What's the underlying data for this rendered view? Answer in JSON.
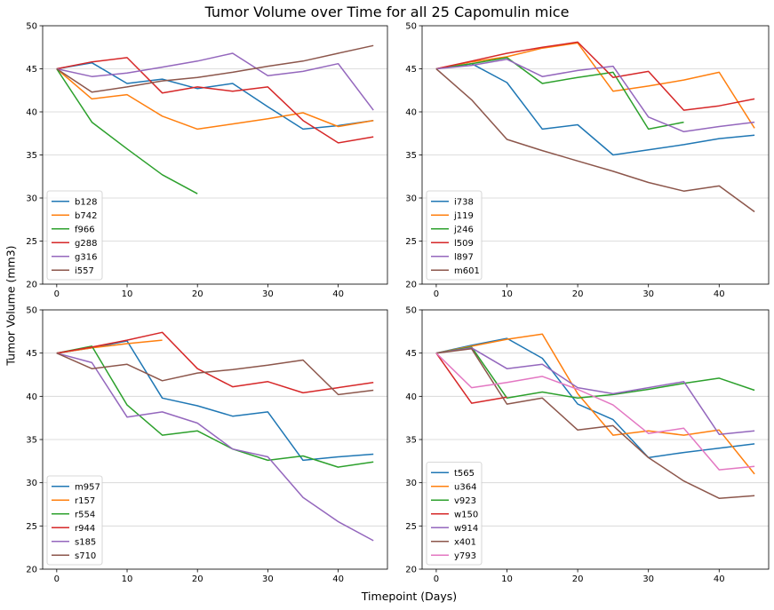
{
  "figure": {
    "title": "Tumor Volume over Time for all 25 Capomulin mice",
    "xlabel": "Timepoint (Days)",
    "ylabel": "Tumor Volume (mm3)"
  },
  "colors": [
    "#1f77b4",
    "#ff7f0e",
    "#2ca02c",
    "#d62728",
    "#9467bd",
    "#8c564b",
    "#e377c2"
  ],
  "chart_data": [
    {
      "type": "line",
      "position": "top-left",
      "xlim": [
        -2,
        47
      ],
      "ylim": [
        20,
        50
      ],
      "xticks": [
        0,
        10,
        20,
        30,
        40
      ],
      "yticks": [
        20,
        25,
        30,
        35,
        40,
        45,
        50
      ],
      "grid": "horizontal",
      "legend": "lower-left",
      "series": [
        {
          "name": "b128",
          "x": [
            0,
            5,
            10,
            15,
            20,
            25,
            30,
            35,
            40,
            45
          ],
          "y": [
            45,
            45.7,
            43.3,
            43.8,
            42.7,
            43.3,
            40.6,
            38.0,
            38.4,
            39.0
          ]
        },
        {
          "name": "b742",
          "x": [
            0,
            5,
            10,
            15,
            20,
            25,
            30,
            35,
            40,
            45
          ],
          "y": [
            45,
            41.5,
            42.0,
            39.5,
            38.0,
            38.6,
            39.2,
            39.9,
            38.3,
            39.0
          ]
        },
        {
          "name": "f966",
          "x": [
            0,
            5,
            10,
            15,
            20
          ],
          "y": [
            45,
            38.8,
            35.7,
            32.7,
            30.5
          ]
        },
        {
          "name": "g288",
          "x": [
            0,
            5,
            10,
            15,
            20,
            25,
            30,
            35,
            40,
            45
          ],
          "y": [
            45,
            45.8,
            46.3,
            42.2,
            42.9,
            42.4,
            42.9,
            39.0,
            36.4,
            37.1
          ]
        },
        {
          "name": "g316",
          "x": [
            0,
            5,
            10,
            15,
            20,
            25,
            30,
            35,
            40,
            45
          ],
          "y": [
            45,
            44.1,
            44.5,
            45.2,
            45.9,
            46.8,
            44.2,
            44.7,
            45.6,
            40.2
          ]
        },
        {
          "name": "i557",
          "x": [
            0,
            5,
            10,
            15,
            20,
            25,
            30,
            35,
            40,
            45
          ],
          "y": [
            45,
            42.3,
            42.9,
            43.6,
            44.0,
            44.6,
            45.3,
            45.9,
            46.8,
            47.7
          ]
        }
      ]
    },
    {
      "type": "line",
      "position": "top-right",
      "xlim": [
        -2,
        47
      ],
      "ylim": [
        20,
        50
      ],
      "xticks": [
        0,
        10,
        20,
        30,
        40
      ],
      "yticks": [
        20,
        25,
        30,
        35,
        40,
        45,
        50
      ],
      "grid": "horizontal",
      "legend": "lower-left",
      "series": [
        {
          "name": "i738",
          "x": [
            0,
            5,
            10,
            15,
            20,
            25,
            30,
            35,
            40,
            45
          ],
          "y": [
            45,
            45.6,
            43.4,
            38.0,
            38.5,
            35.0,
            35.6,
            36.2,
            36.9,
            37.3
          ]
        },
        {
          "name": "j119",
          "x": [
            0,
            5,
            10,
            15,
            20,
            25,
            30,
            35,
            40,
            45
          ],
          "y": [
            45,
            45.8,
            46.4,
            47.4,
            48.0,
            42.4,
            43.0,
            43.7,
            44.6,
            38.1
          ]
        },
        {
          "name": "j246",
          "x": [
            0,
            5,
            10,
            15,
            20,
            25,
            30,
            35
          ],
          "y": [
            45,
            45.6,
            46.3,
            43.3,
            44.0,
            44.6,
            38.0,
            38.8
          ]
        },
        {
          "name": "l509",
          "x": [
            0,
            5,
            10,
            15,
            20,
            25,
            30,
            35,
            40,
            45
          ],
          "y": [
            45,
            45.9,
            46.8,
            47.5,
            48.1,
            44.0,
            44.7,
            40.2,
            40.7,
            41.5
          ]
        },
        {
          "name": "l897",
          "x": [
            0,
            5,
            10,
            15,
            20,
            25,
            30,
            35,
            40,
            45
          ],
          "y": [
            45,
            45.4,
            46.1,
            44.1,
            44.8,
            45.3,
            39.4,
            37.7,
            38.3,
            38.8
          ]
        },
        {
          "name": "m601",
          "x": [
            0,
            5,
            10,
            15,
            20,
            25,
            30,
            35,
            40,
            45
          ],
          "y": [
            45,
            41.4,
            36.8,
            35.5,
            34.3,
            33.1,
            31.8,
            30.8,
            31.4,
            28.4
          ]
        }
      ]
    },
    {
      "type": "line",
      "position": "bottom-left",
      "xlim": [
        -2,
        47
      ],
      "ylim": [
        20,
        50
      ],
      "xticks": [
        0,
        10,
        20,
        30,
        40
      ],
      "yticks": [
        20,
        25,
        30,
        35,
        40,
        45,
        50
      ],
      "grid": "horizontal",
      "legend": "lower-left",
      "series": [
        {
          "name": "m957",
          "x": [
            0,
            5,
            10,
            15,
            20,
            25,
            30,
            35,
            40,
            45
          ],
          "y": [
            45,
            45.6,
            46.4,
            39.8,
            38.9,
            37.7,
            38.2,
            32.6,
            33.0,
            33.3
          ]
        },
        {
          "name": "r157",
          "x": [
            0,
            5,
            10,
            15
          ],
          "y": [
            45,
            45.6,
            46.1,
            46.5
          ]
        },
        {
          "name": "r554",
          "x": [
            0,
            5,
            10,
            15,
            20,
            25,
            30,
            35,
            40,
            45
          ],
          "y": [
            45,
            45.8,
            39.0,
            35.5,
            36.0,
            33.9,
            32.6,
            33.1,
            31.8,
            32.4
          ]
        },
        {
          "name": "r944",
          "x": [
            0,
            5,
            10,
            15,
            20,
            25,
            30,
            35,
            40,
            45
          ],
          "y": [
            45,
            45.7,
            46.5,
            47.4,
            43.2,
            41.1,
            41.7,
            40.4,
            41.0,
            41.6
          ]
        },
        {
          "name": "s185",
          "x": [
            0,
            5,
            10,
            15,
            20,
            25,
            30,
            35,
            40,
            45
          ],
          "y": [
            45,
            43.9,
            37.6,
            38.2,
            36.9,
            33.9,
            33.0,
            28.3,
            25.5,
            23.3
          ]
        },
        {
          "name": "s710",
          "x": [
            0,
            5,
            10,
            15,
            20,
            25,
            30,
            35,
            40,
            45
          ],
          "y": [
            45,
            43.2,
            43.7,
            41.8,
            42.7,
            43.1,
            43.6,
            44.2,
            40.2,
            40.7
          ]
        }
      ]
    },
    {
      "type": "line",
      "position": "bottom-right",
      "xlim": [
        -2,
        47
      ],
      "ylim": [
        20,
        50
      ],
      "xticks": [
        0,
        10,
        20,
        30,
        40
      ],
      "yticks": [
        20,
        25,
        30,
        35,
        40,
        45,
        50
      ],
      "grid": "horizontal",
      "legend": "lower-left",
      "series": [
        {
          "name": "t565",
          "x": [
            0,
            5,
            10,
            15,
            20,
            25,
            30,
            35,
            40,
            45
          ],
          "y": [
            45,
            45.9,
            46.7,
            44.4,
            39.1,
            37.3,
            32.9,
            33.5,
            34.0,
            34.5
          ]
        },
        {
          "name": "u364",
          "x": [
            0,
            5,
            10,
            15,
            20,
            25,
            30,
            35,
            40,
            45
          ],
          "y": [
            45,
            45.8,
            46.6,
            47.2,
            40.3,
            35.5,
            36.0,
            35.5,
            36.1,
            31.0
          ]
        },
        {
          "name": "v923",
          "x": [
            0,
            5,
            10,
            15,
            20,
            25,
            30,
            35,
            40,
            45
          ],
          "y": [
            45,
            45.7,
            39.8,
            40.5,
            39.8,
            40.2,
            40.8,
            41.5,
            42.1,
            40.7
          ]
        },
        {
          "name": "w150",
          "x": [
            0,
            5,
            10
          ],
          "y": [
            45,
            39.2,
            39.9
          ]
        },
        {
          "name": "w914",
          "x": [
            0,
            5,
            10,
            15,
            20,
            25,
            30,
            35,
            40,
            45
          ],
          "y": [
            45,
            45.6,
            43.2,
            43.7,
            41.0,
            40.3,
            41.0,
            41.7,
            35.6,
            36.0
          ]
        },
        {
          "name": "x401",
          "x": [
            0,
            5,
            10,
            15,
            20,
            25,
            30,
            35,
            40,
            45
          ],
          "y": [
            45,
            45.5,
            39.1,
            39.8,
            36.1,
            36.6,
            32.9,
            30.2,
            28.2,
            28.5
          ]
        },
        {
          "name": "y793",
          "x": [
            0,
            5,
            10,
            15,
            20,
            25,
            30,
            35,
            40,
            45
          ],
          "y": [
            45,
            41.0,
            41.6,
            42.3,
            40.8,
            39.0,
            35.7,
            36.3,
            31.5,
            31.9
          ]
        }
      ]
    }
  ]
}
